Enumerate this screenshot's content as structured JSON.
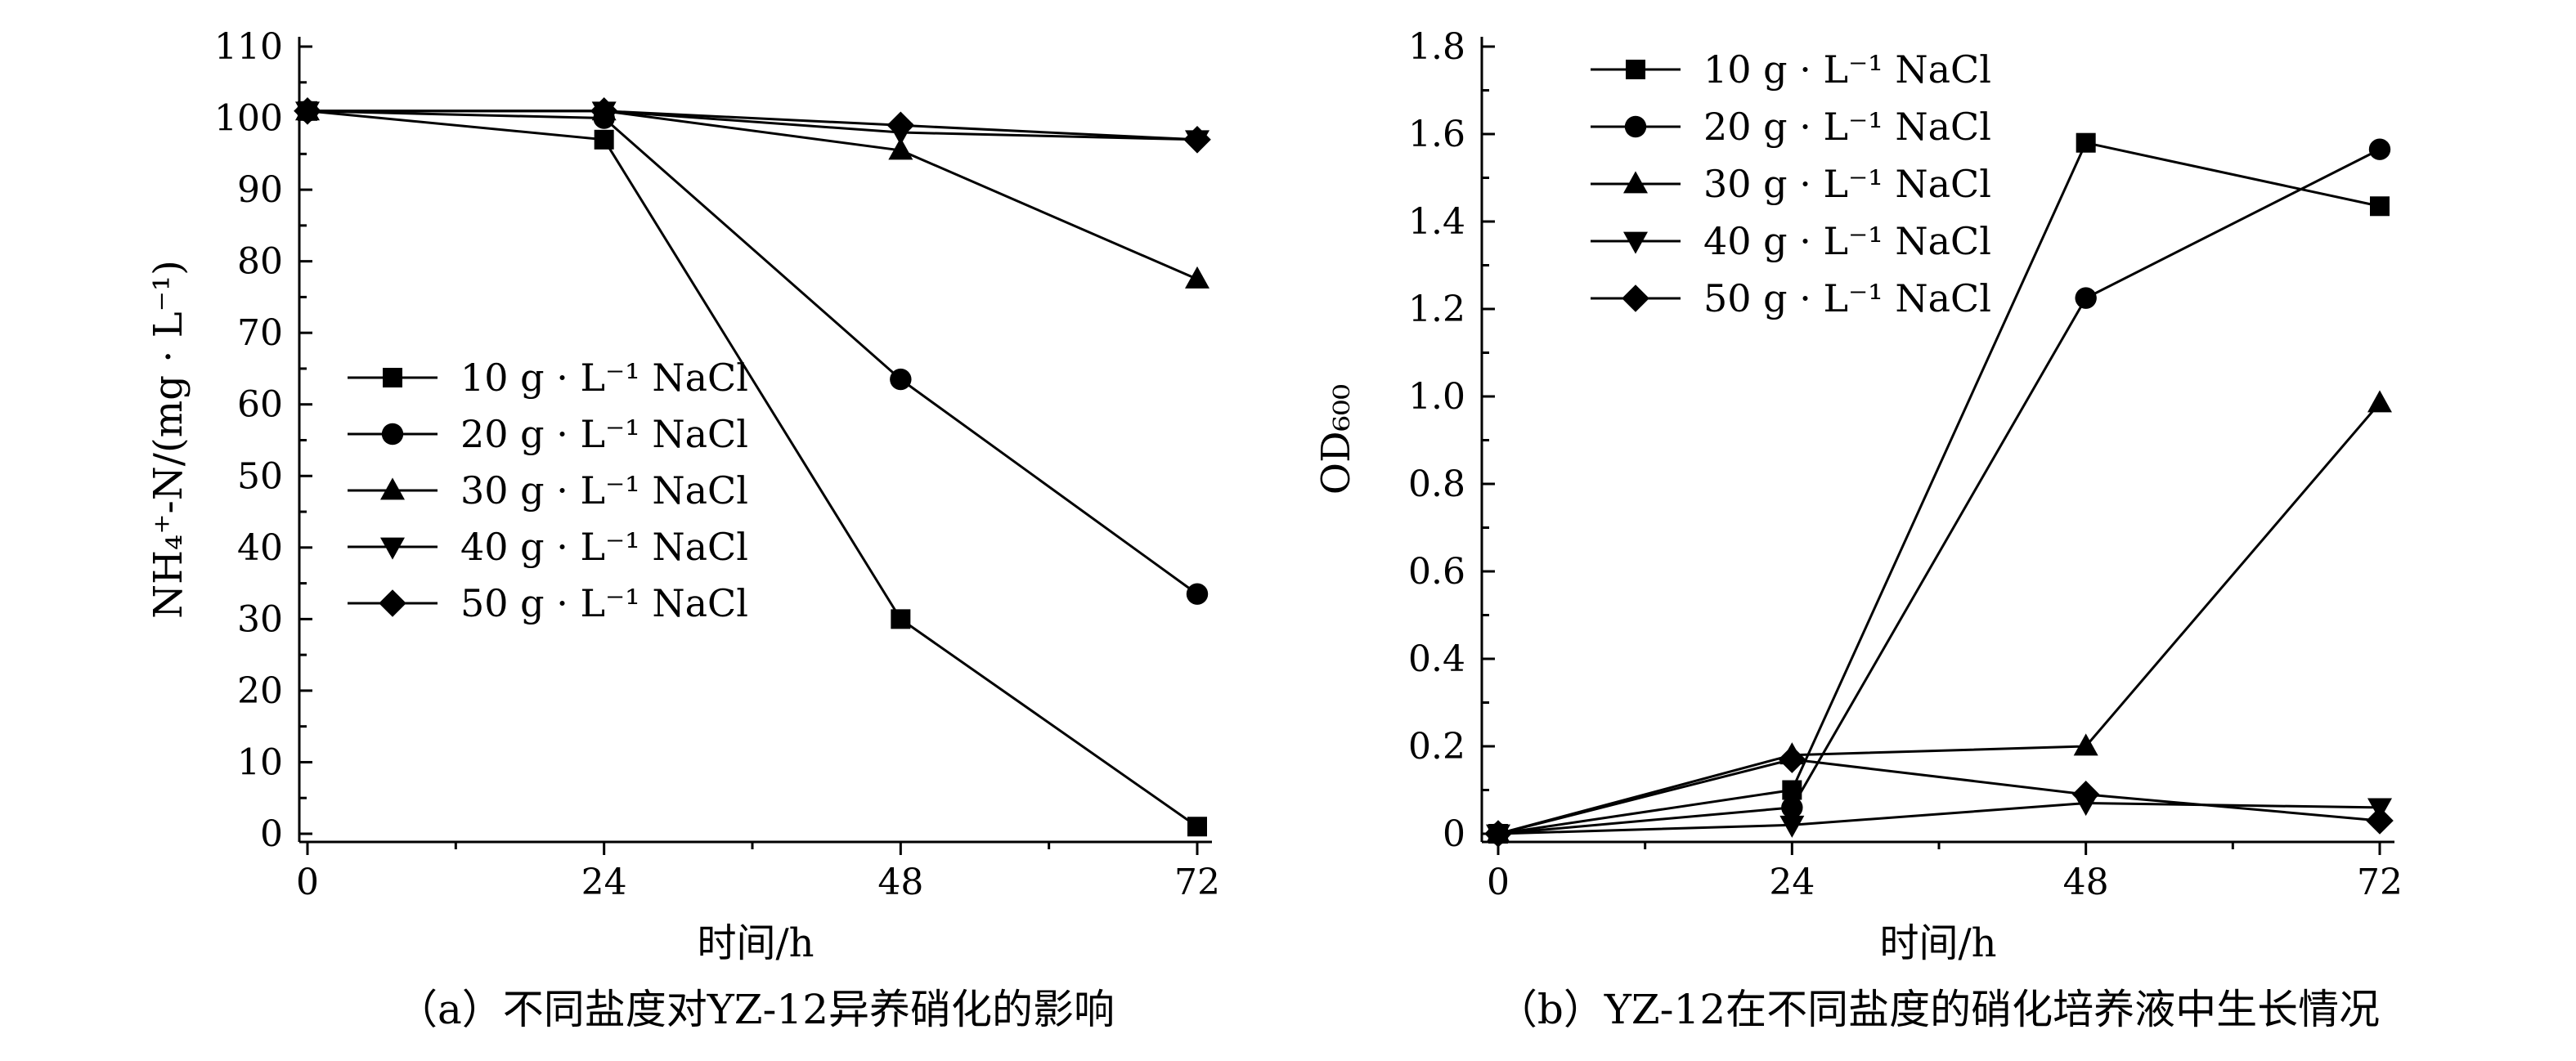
{
  "chart_data": [
    {
      "type": "line",
      "caption": "（a）不同盐度对YZ-12异养硝化的影响",
      "xlabel": "时间/h",
      "ylabel": "NH₄⁺-N/(mg · L⁻¹)",
      "x": [
        0,
        24,
        48,
        72
      ],
      "xticks": [
        "0",
        "24",
        "48",
        "72"
      ],
      "xlim": [
        0,
        72
      ],
      "ylim": [
        0,
        110
      ],
      "yticks": [
        "0",
        "10",
        "20",
        "30",
        "40",
        "50",
        "60",
        "70",
        "80",
        "90",
        "100",
        "110"
      ],
      "legend_position": "center-left",
      "series": [
        {
          "name": "10 g · L⁻¹ NaCl",
          "marker": "square",
          "values": [
            101,
            97,
            30,
            1
          ]
        },
        {
          "name": "20 g · L⁻¹ NaCl",
          "marker": "circle",
          "values": [
            101,
            100,
            63.5,
            33.5
          ]
        },
        {
          "name": "30 g · L⁻¹ NaCl",
          "marker": "triangle-up",
          "values": [
            101,
            101,
            95.5,
            77.5
          ]
        },
        {
          "name": "40 g · L⁻¹ NaCl",
          "marker": "triangle-down",
          "values": [
            101,
            101,
            98,
            97
          ]
        },
        {
          "name": "50 g · L⁻¹ NaCl",
          "marker": "diamond",
          "values": [
            101,
            101,
            99,
            97
          ]
        }
      ]
    },
    {
      "type": "line",
      "caption": "（b）YZ-12在不同盐度的硝化培养液中生长情况",
      "xlabel": "时间/h",
      "ylabel": "OD₆₀₀",
      "x": [
        0,
        24,
        48,
        72
      ],
      "xticks": [
        "0",
        "24",
        "48",
        "72"
      ],
      "xlim": [
        0,
        72
      ],
      "ylim": [
        0,
        1.8
      ],
      "yticks": [
        "0",
        "0.2",
        "0.4",
        "0.6",
        "0.8",
        "1.0",
        "1.2",
        "1.4",
        "1.6",
        "1.8"
      ],
      "legend_position": "top-left",
      "series": [
        {
          "name": "10 g · L⁻¹ NaCl",
          "marker": "square",
          "values": [
            0,
            0.1,
            1.58,
            1.435
          ]
        },
        {
          "name": "20 g · L⁻¹ NaCl",
          "marker": "circle",
          "values": [
            0,
            0.06,
            1.225,
            1.565
          ]
        },
        {
          "name": "30 g · L⁻¹ NaCl",
          "marker": "triangle-up",
          "values": [
            0,
            0.18,
            0.2,
            0.985
          ]
        },
        {
          "name": "40 g · L⁻¹ NaCl",
          "marker": "triangle-down",
          "values": [
            0,
            0.02,
            0.07,
            0.06
          ]
        },
        {
          "name": "50 g · L⁻¹ NaCl",
          "marker": "diamond",
          "values": [
            0,
            0.17,
            0.09,
            0.03
          ]
        }
      ]
    }
  ]
}
